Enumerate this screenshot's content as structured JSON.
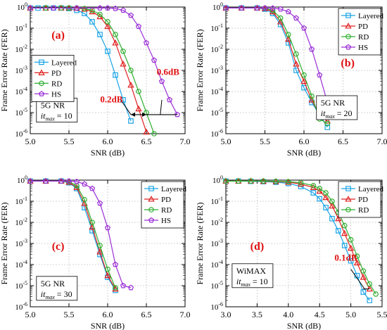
{
  "figure": {
    "colors": {
      "Layered": "#1aa3e6",
      "PD": "#e02020",
      "RD": "#2fae2f",
      "HS": "#9b2fd6",
      "annotation": "#e01010",
      "axis": "#000000",
      "grid": "#c8c8c8"
    },
    "markers": {
      "Layered": "square",
      "PD": "triangle",
      "RD": "circle",
      "HS": "pentagon"
    }
  },
  "chart_data": [
    {
      "type": "line",
      "panel_label": "(a)",
      "xlabel": "SNR (dB)",
      "ylabel": "Frame Error Rate (FER)",
      "xlim": [
        5.0,
        7.0
      ],
      "xticks": [
        "5.0",
        "5.5",
        "6.0",
        "6.5",
        "7.0"
      ],
      "ylim_exp": [
        -6,
        0
      ],
      "yscale": "log",
      "grid": true,
      "legend": {
        "placement": "left-middle",
        "entries": [
          "Layered",
          "PD",
          "RD",
          "HS"
        ]
      },
      "info_box": {
        "line1": "5G NR",
        "line2_var": "it",
        "line2_sub": "max",
        "line2_rest": " = 10"
      },
      "annotations": [
        "0.2dB",
        "0.6dB"
      ],
      "series": [
        {
          "name": "Layered",
          "x": [
            5.0,
            5.1,
            5.2,
            5.3,
            5.4,
            5.5,
            5.6,
            5.7,
            5.8,
            5.9,
            6.0,
            6.1,
            6.2,
            6.3
          ],
          "y": [
            0.9,
            0.9,
            0.9,
            0.9,
            0.9,
            0.85,
            0.7,
            0.5,
            0.2,
            0.05,
            0.008,
            0.0006,
            4e-05,
            4e-06
          ]
        },
        {
          "name": "PD",
          "x": [
            5.0,
            5.2,
            5.4,
            5.5,
            5.6,
            5.7,
            5.8,
            5.9,
            6.0,
            6.1,
            6.2,
            6.3,
            6.4,
            6.5
          ],
          "y": [
            0.9,
            0.9,
            0.9,
            0.9,
            0.88,
            0.8,
            0.6,
            0.35,
            0.12,
            0.02,
            0.002,
            0.0002,
            1.5e-05,
            1.2e-06
          ]
        },
        {
          "name": "RD",
          "x": [
            5.0,
            5.2,
            5.4,
            5.5,
            5.6,
            5.7,
            5.8,
            5.9,
            6.0,
            6.1,
            6.2,
            6.3,
            6.4,
            6.5,
            6.6
          ],
          "y": [
            0.9,
            0.9,
            0.9,
            0.9,
            0.9,
            0.85,
            0.7,
            0.45,
            0.2,
            0.05,
            0.008,
            0.001,
            0.0001,
            1e-05,
            1e-06
          ]
        },
        {
          "name": "HS",
          "x": [
            5.0,
            5.3,
            5.6,
            5.9,
            6.0,
            6.1,
            6.2,
            6.3,
            6.4,
            6.5,
            6.6,
            6.7,
            6.8,
            6.9
          ],
          "y": [
            0.9,
            0.9,
            0.9,
            0.9,
            0.9,
            0.85,
            0.7,
            0.4,
            0.12,
            0.02,
            0.003,
            0.0003,
            4e-05,
            8e-06
          ]
        }
      ]
    },
    {
      "type": "line",
      "panel_label": "(b)",
      "xlabel": "SNR (dB)",
      "ylabel": "Frame Error Rate (FER)",
      "xlim": [
        5.0,
        7.0
      ],
      "xticks": [
        "5.0",
        "5.5",
        "6.0",
        "6.5",
        "7.0"
      ],
      "ylim_exp": [
        -6,
        0
      ],
      "yscale": "log",
      "grid": true,
      "legend": {
        "placement": "top-right",
        "entries": [
          "Layered",
          "PD",
          "RD",
          "HS"
        ]
      },
      "info_box": {
        "line1": "5G NR",
        "line2_var": "it",
        "line2_sub": "max",
        "line2_rest": " = 20"
      },
      "annotations": [],
      "series": [
        {
          "name": "Layered",
          "x": [
            5.0,
            5.2,
            5.4,
            5.5,
            5.6,
            5.7,
            5.8,
            5.9,
            6.0,
            6.1,
            6.2,
            6.3
          ],
          "y": [
            0.9,
            0.9,
            0.9,
            0.8,
            0.5,
            0.15,
            0.02,
            0.001,
            0.00015,
            3e-05,
            8e-06,
            2e-06
          ]
        },
        {
          "name": "PD",
          "x": [
            5.0,
            5.2,
            5.4,
            5.5,
            5.6,
            5.7,
            5.8,
            5.9,
            6.0,
            6.1,
            6.2,
            6.3
          ],
          "y": [
            0.9,
            0.9,
            0.9,
            0.85,
            0.6,
            0.2,
            0.03,
            0.002,
            0.0003,
            4e-05,
            7e-06,
            4e-06
          ]
        },
        {
          "name": "RD",
          "x": [
            5.0,
            5.2,
            5.4,
            5.5,
            5.6,
            5.7,
            5.8,
            5.9,
            6.0,
            6.1,
            6.2,
            6.3
          ],
          "y": [
            0.9,
            0.9,
            0.9,
            0.88,
            0.7,
            0.3,
            0.05,
            0.006,
            0.0006,
            6e-05,
            5e-06,
            3e-06
          ]
        },
        {
          "name": "HS",
          "x": [
            5.0,
            5.2,
            5.4,
            5.5,
            5.6,
            5.7,
            5.8,
            5.9,
            6.0,
            6.1,
            6.2,
            6.3,
            6.4
          ],
          "y": [
            0.9,
            0.9,
            0.9,
            0.9,
            0.88,
            0.8,
            0.6,
            0.3,
            0.1,
            0.01,
            0.0006,
            3e-05,
            1e-05
          ]
        }
      ]
    },
    {
      "type": "line",
      "panel_label": "(c)",
      "xlabel": "SNR (dB)",
      "ylabel": "Frame Error Rate (FER)",
      "xlim": [
        5.0,
        7.0
      ],
      "xticks": [
        "5.0",
        "5.5",
        "6.0",
        "6.5",
        "7.0"
      ],
      "ylim_exp": [
        -6,
        0
      ],
      "yscale": "log",
      "grid": true,
      "legend": {
        "placement": "top-right",
        "entries": [
          "Layered",
          "PD",
          "RD",
          "HS"
        ]
      },
      "info_box": {
        "line1": "5G NR",
        "line2_var": "it",
        "line2_sub": "max",
        "line2_rest": " = 30"
      },
      "annotations": [],
      "series": [
        {
          "name": "Layered",
          "x": [
            5.0,
            5.2,
            5.4,
            5.5,
            5.6,
            5.7,
            5.8,
            5.9,
            6.0,
            6.1
          ],
          "y": [
            0.9,
            0.9,
            0.9,
            0.75,
            0.4,
            0.05,
            0.004,
            0.0003,
            2.5e-05,
            6e-06
          ]
        },
        {
          "name": "PD",
          "x": [
            5.0,
            5.2,
            5.4,
            5.5,
            5.6,
            5.7,
            5.8,
            5.9,
            6.0,
            6.1
          ],
          "y": [
            0.9,
            0.9,
            0.9,
            0.8,
            0.45,
            0.08,
            0.006,
            0.0004,
            3e-05,
            7e-06
          ]
        },
        {
          "name": "RD",
          "x": [
            5.0,
            5.2,
            5.4,
            5.5,
            5.6,
            5.7,
            5.8,
            5.9,
            6.0,
            6.1
          ],
          "y": [
            0.9,
            0.9,
            0.9,
            0.85,
            0.55,
            0.12,
            0.01,
            0.0008,
            6e-05,
            8e-06
          ]
        },
        {
          "name": "HS",
          "x": [
            5.0,
            5.2,
            5.4,
            5.5,
            5.6,
            5.7,
            5.8,
            5.9,
            6.0,
            6.1,
            6.2,
            6.3
          ],
          "y": [
            0.9,
            0.9,
            0.9,
            0.9,
            0.85,
            0.65,
            0.4,
            0.08,
            0.0055,
            0.0001,
            1e-05,
            8e-06
          ]
        }
      ]
    },
    {
      "type": "line",
      "panel_label": "(d)",
      "xlabel": "SNR (dB)",
      "ylabel": "Frame Error Rate (FER)",
      "xlim": [
        3.0,
        5.5
      ],
      "xticks": [
        "3.0",
        "3.5",
        "4.0",
        "4.5",
        "5.0",
        "5.5"
      ],
      "ylim_exp": [
        -6,
        0
      ],
      "yscale": "log",
      "grid": true,
      "legend": {
        "placement": "top-right",
        "entries": [
          "Layered",
          "PD",
          "RD"
        ]
      },
      "info_box": {
        "line1": "WiMAX",
        "line2_var": "it",
        "line2_sub": "max",
        "line2_rest": " = 10"
      },
      "annotations": [
        "0.1dB"
      ],
      "series": [
        {
          "name": "Layered",
          "x": [
            3.0,
            3.2,
            3.4,
            3.6,
            3.8,
            4.0,
            4.2,
            4.4,
            4.5,
            4.6,
            4.7,
            4.8,
            4.9,
            5.0,
            5.1,
            5.2,
            5.3
          ],
          "y": [
            0.9,
            0.9,
            0.88,
            0.85,
            0.8,
            0.7,
            0.5,
            0.25,
            0.13,
            0.05,
            0.015,
            0.004,
            0.0008,
            0.00015,
            3e-05,
            5e-06,
            2e-06
          ]
        },
        {
          "name": "PD",
          "x": [
            3.0,
            3.2,
            3.4,
            3.6,
            3.8,
            4.0,
            4.2,
            4.4,
            4.5,
            4.6,
            4.7,
            4.8,
            4.9,
            5.0,
            5.1,
            5.2,
            5.3
          ],
          "y": [
            0.9,
            0.9,
            0.9,
            0.88,
            0.85,
            0.8,
            0.65,
            0.45,
            0.3,
            0.15,
            0.06,
            0.015,
            0.003,
            0.0006,
            0.00012,
            2.5e-05,
            7e-06
          ]
        },
        {
          "name": "RD",
          "x": [
            3.0,
            3.2,
            3.4,
            3.6,
            3.8,
            4.0,
            4.2,
            4.4,
            4.5,
            4.6,
            4.7,
            4.8,
            4.9,
            5.0,
            5.1,
            5.2,
            5.3,
            5.4
          ],
          "y": [
            0.9,
            0.9,
            0.9,
            0.9,
            0.88,
            0.85,
            0.75,
            0.55,
            0.4,
            0.25,
            0.1,
            0.03,
            0.007,
            0.0015,
            0.00025,
            5e-05,
            1.2e-05,
            4e-06
          ]
        }
      ]
    }
  ]
}
